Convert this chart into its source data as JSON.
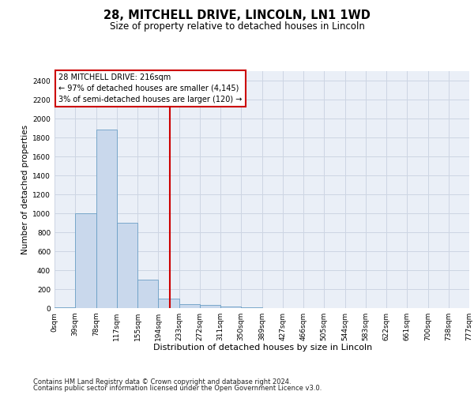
{
  "title1": "28, MITCHELL DRIVE, LINCOLN, LN1 1WD",
  "title2": "Size of property relative to detached houses in Lincoln",
  "xlabel": "Distribution of detached houses by size in Lincoln",
  "ylabel": "Number of detached properties",
  "footer1": "Contains HM Land Registry data © Crown copyright and database right 2024.",
  "footer2": "Contains public sector information licensed under the Open Government Licence v3.0.",
  "annotation_line1": "28 MITCHELL DRIVE: 216sqm",
  "annotation_line2": "← 97% of detached houses are smaller (4,145)",
  "annotation_line3": "3% of semi-detached houses are larger (120) →",
  "bar_color": "#c9d8ec",
  "bar_edge_color": "#6a9ec5",
  "vline_color": "#cc0000",
  "vline_x_pos": 5.56,
  "annotation_box_color": "#cc0000",
  "ylim": [
    0,
    2500
  ],
  "yticks": [
    0,
    200,
    400,
    600,
    800,
    1000,
    1200,
    1400,
    1600,
    1800,
    2000,
    2200,
    2400
  ],
  "bar_heights": [
    10,
    1000,
    1880,
    900,
    300,
    100,
    45,
    35,
    20,
    5,
    0,
    0,
    0,
    0,
    0,
    0,
    0,
    0,
    0,
    0
  ],
  "tick_labels": [
    "0sqm",
    "39sqm",
    "78sqm",
    "117sqm",
    "155sqm",
    "194sqm",
    "233sqm",
    "272sqm",
    "311sqm",
    "350sqm",
    "389sqm",
    "427sqm",
    "466sqm",
    "505sqm",
    "544sqm",
    "583sqm",
    "622sqm",
    "661sqm",
    "700sqm",
    "738sqm",
    "777sqm"
  ],
  "grid_color": "#cdd5e3",
  "bg_color": "#eaeff7",
  "title1_fontsize": 10.5,
  "title2_fontsize": 8.5,
  "ylabel_fontsize": 7.5,
  "xlabel_fontsize": 8.0,
  "tick_fontsize": 6.5,
  "footer_fontsize": 6.0
}
